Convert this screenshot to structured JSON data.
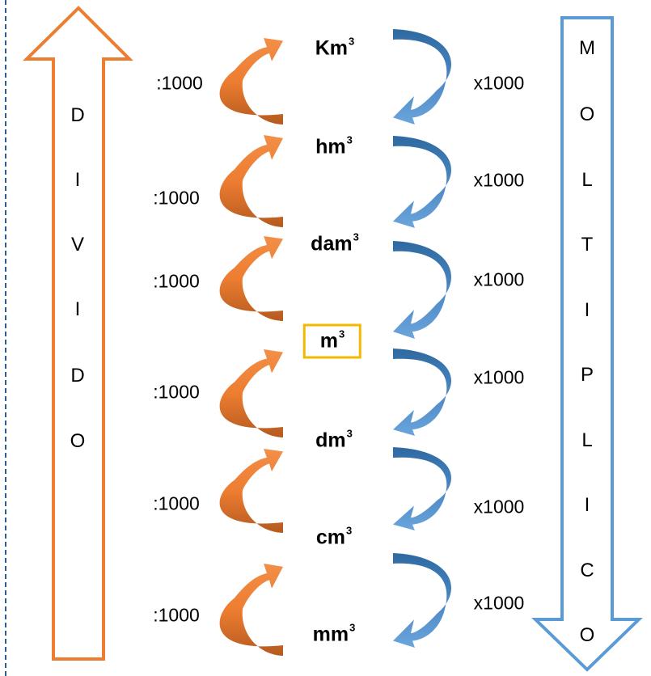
{
  "left_arrow": {
    "word_letters": [
      "D",
      "I",
      "V",
      "I",
      "D",
      "O"
    ],
    "color": "#ed7d31"
  },
  "right_arrow": {
    "word_letters": [
      "M",
      "O",
      "L",
      "T",
      "I",
      "P",
      "L",
      "I",
      "C",
      "O"
    ],
    "color": "#5b9bd5"
  },
  "units": [
    {
      "base": "Km",
      "exp": "3",
      "highlighted": false
    },
    {
      "base": "hm",
      "exp": "3",
      "highlighted": false
    },
    {
      "base": "dam",
      "exp": "3",
      "highlighted": false
    },
    {
      "base": "m",
      "exp": "3",
      "highlighted": true
    },
    {
      "base": "dm",
      "exp": "3",
      "highlighted": false
    },
    {
      "base": "cm",
      "exp": "3",
      "highlighted": false
    },
    {
      "base": "mm",
      "exp": "3",
      "highlighted": false
    }
  ],
  "divide_factors": [
    ":1000",
    ":1000",
    ":1000",
    ":1000",
    ":1000",
    ":1000"
  ],
  "multiply_factors": [
    "x1000",
    "x1000",
    "x1000",
    "x1000",
    "x1000",
    "x1000"
  ],
  "colors": {
    "orange": "#ed7d31",
    "blue": "#5b9bd5",
    "highlight": "#f5b800"
  }
}
